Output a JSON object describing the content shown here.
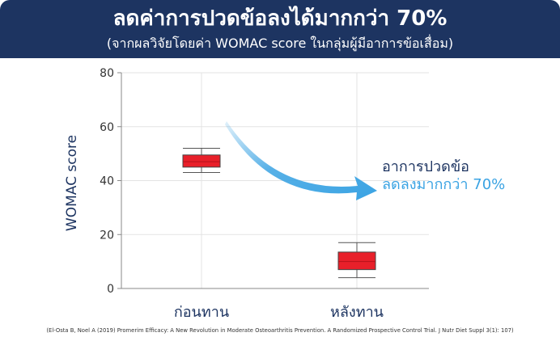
{
  "header": {
    "title": "ลดค่าการปวดข้อลงได้มากกว่า 70%",
    "subtitle": "(จากผลวิจัยโดยค่า WOMAC score ในกลุ่มผู้มีอาการข้อเสื่อม)"
  },
  "note": {
    "line1": "อาการปวดข้อ",
    "line2": "ลดลงมากกว่า 70%"
  },
  "footnote": "(El-Osta B, Noel A (2019) Promerim Efficacy: A New Revolution in Moderate Osteoarthritis Prevention. A Randomized Prospective Control Trial. J Nutr Diet Suppl 3(1): 107)",
  "colors": {
    "header_bg": "#1d3461",
    "box_fill": "#e8202a",
    "arrow": "#3aa3e3",
    "accent_text": "#3aa3e3"
  },
  "chart_data": {
    "type": "box",
    "ylabel": "WOMAC score",
    "ylim": [
      0,
      80
    ],
    "yticks": [
      "0",
      "20",
      "40",
      "60",
      "80"
    ],
    "categories": [
      "ก่อนทาน",
      "หลังทาน"
    ],
    "boxes": [
      {
        "category": "ก่อนทาน",
        "min": 43,
        "q1": 45,
        "median": 47,
        "q3": 49.5,
        "max": 52
      },
      {
        "category": "หลังทาน",
        "min": 4,
        "q1": 7,
        "median": 10,
        "q3": 13.5,
        "max": 17
      }
    ]
  }
}
